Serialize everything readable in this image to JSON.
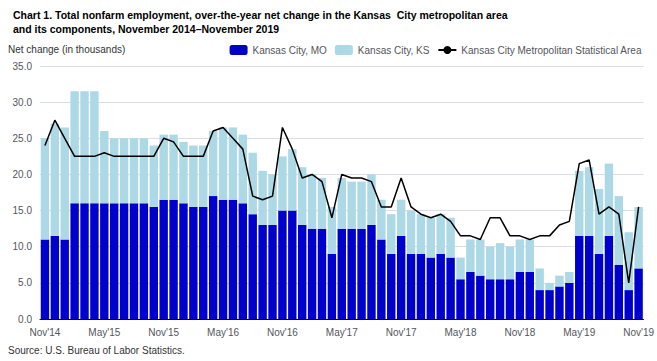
{
  "chart_data": {
    "type": "bar",
    "title": "Chart 1. Total nonfarm employment, over-the-year net change in the Kansas  City metropolitan area",
    "subtitle": "and its components, November 2014–November 2019",
    "ylabel": "Net change (in thousands)",
    "annotations": [
      "Source: U.S. Bureau of Labor Statistics."
    ],
    "categories": [
      "Nov'14",
      null,
      null,
      null,
      null,
      null,
      "May'15",
      null,
      null,
      null,
      null,
      null,
      "Nov'15",
      null,
      null,
      null,
      null,
      null,
      "May'16",
      null,
      null,
      null,
      null,
      null,
      "Nov'16",
      null,
      null,
      null,
      null,
      null,
      "May'17",
      null,
      null,
      null,
      null,
      null,
      "Nov'17",
      null,
      null,
      null,
      null,
      null,
      "May'18",
      null,
      null,
      null,
      null,
      null,
      "Nov'18",
      null,
      null,
      null,
      null,
      null,
      "May'19",
      null,
      null,
      null,
      null,
      null,
      "Nov'19"
    ],
    "stacked": true,
    "grid": true,
    "legend": "upper right",
    "ylim": [
      0.0,
      35.0
    ],
    "yticks": [
      {
        "value": 0,
        "label": "0.0"
      },
      {
        "value": 5,
        "label": "5.0"
      },
      {
        "value": 10,
        "label": "10.0"
      },
      {
        "value": 15,
        "label": "15.0"
      },
      {
        "value": 20,
        "label": "20.0"
      },
      {
        "value": 25,
        "label": "25.0"
      },
      {
        "value": 30,
        "label": "30.0"
      },
      {
        "value": 35,
        "label": "35.0"
      }
    ],
    "series": [
      {
        "name": "Kansas City, MO",
        "type": "bar",
        "color": "#0000CD",
        "values": [
          11.0,
          11.5,
          11.0,
          16.0,
          16.0,
          16.0,
          16.0,
          16.0,
          16.0,
          16.0,
          16.0,
          15.5,
          16.5,
          16.5,
          16.0,
          15.5,
          15.5,
          17.0,
          16.5,
          16.5,
          16.0,
          14.5,
          13.0,
          13.0,
          15.0,
          15.0,
          13.0,
          12.5,
          12.5,
          9.0,
          12.5,
          12.5,
          12.5,
          13.0,
          11.0,
          9.0,
          11.5,
          9.0,
          9.0,
          8.5,
          9.0,
          8.5,
          5.5,
          6.5,
          6.0,
          5.5,
          5.5,
          5.5,
          6.5,
          6.5,
          4.0,
          4.0,
          4.5,
          5.0,
          11.5,
          11.5,
          9.0,
          11.5,
          7.5,
          4.0,
          7.0
        ]
      },
      {
        "name": "Kansas City, KS",
        "type": "bar",
        "color": "#ADD8E6",
        "values": [
          14.0,
          15.5,
          15.5,
          15.5,
          15.5,
          15.5,
          10.0,
          9.0,
          9.0,
          9.0,
          9.0,
          8.5,
          9.0,
          9.0,
          8.5,
          8.5,
          8.5,
          9.0,
          10.0,
          10.0,
          9.5,
          8.5,
          7.5,
          7.0,
          7.5,
          8.5,
          8.0,
          7.5,
          7.0,
          6.5,
          7.0,
          6.5,
          6.5,
          7.0,
          5.5,
          5.5,
          5.0,
          6.0,
          5.5,
          5.5,
          5.5,
          5.5,
          3.0,
          4.5,
          5.0,
          4.5,
          5.0,
          4.5,
          4.5,
          4.5,
          3.0,
          1.0,
          1.5,
          1.5,
          9.0,
          9.5,
          9.0,
          10.0,
          9.5,
          8.0,
          8.5
        ]
      },
      {
        "name": "Kansas City Metropolitan Statistical Area",
        "type": "line",
        "color": "#000000",
        "values": [
          24.0,
          27.5,
          25.0,
          22.5,
          22.5,
          22.5,
          23.0,
          22.5,
          22.5,
          22.5,
          22.5,
          22.5,
          25.0,
          24.5,
          22.5,
          22.5,
          22.5,
          26.0,
          26.5,
          25.0,
          23.5,
          17.0,
          16.5,
          17.0,
          26.5,
          23.5,
          19.5,
          20.0,
          19.0,
          14.0,
          20.0,
          19.5,
          19.5,
          19.0,
          15.5,
          15.5,
          19.5,
          15.5,
          14.5,
          14.0,
          14.5,
          13.5,
          11.5,
          11.5,
          11.0,
          14.0,
          14.0,
          11.5,
          11.5,
          11.0,
          11.5,
          11.5,
          13.0,
          13.5,
          21.5,
          22.0,
          14.5,
          15.5,
          14.5,
          5.0,
          15.5
        ]
      }
    ]
  }
}
